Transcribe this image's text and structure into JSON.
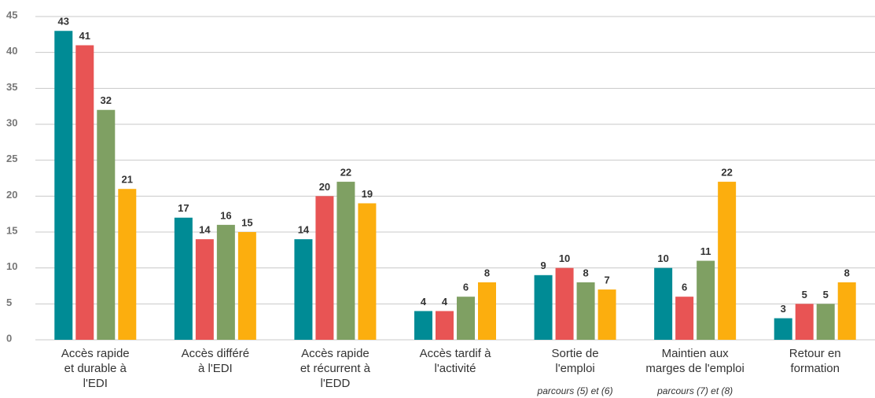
{
  "chart_data": {
    "type": "bar",
    "categories": [
      "Accès rapide\net durable à\nl'EDI",
      "Accès différé\nà l'EDI",
      "Accès rapide\net récurrent à\nl'EDD",
      "Accès tardif à\nl'activité",
      "Sortie de\nl'emploi",
      "Maintien aux\nmarges de l'emploi",
      "Retour en\nformation"
    ],
    "annotations": [
      "parcours (5) et (6)",
      "parcours (7) et (8)"
    ],
    "series": [
      {
        "color": "#008b95",
        "values": [
          43,
          17,
          14,
          4,
          9,
          10,
          3
        ]
      },
      {
        "color": "#e85454",
        "values": [
          41,
          14,
          20,
          4,
          10,
          6,
          5
        ]
      },
      {
        "color": "#7fa063",
        "values": [
          32,
          16,
          22,
          6,
          8,
          11,
          5
        ]
      },
      {
        "color": "#fcae0e",
        "values": [
          21,
          15,
          19,
          8,
          7,
          22,
          8
        ]
      }
    ],
    "ylim": [
      0,
      45
    ],
    "yticks": [
      0,
      5,
      10,
      15,
      20,
      25,
      30,
      35,
      40,
      45
    ],
    "grid": true
  }
}
